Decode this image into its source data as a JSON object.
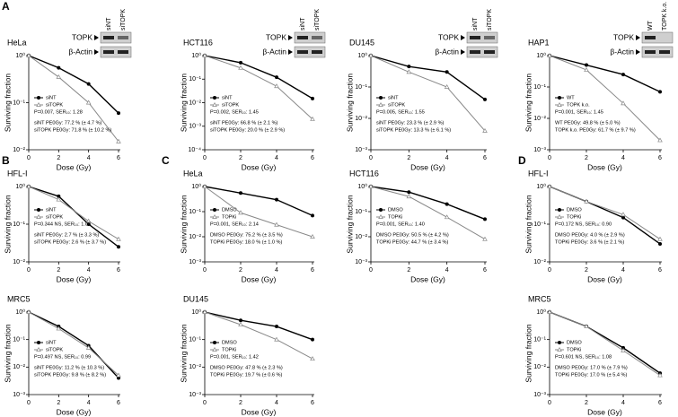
{
  "chart_data": [
    {
      "type": "line",
      "panel": "A",
      "title": "HeLa",
      "ylog": true,
      "xlabel": "Dose (Gy)",
      "ylabel": "Surviving fraction",
      "x": [
        0,
        2,
        4,
        6
      ],
      "xlim": [
        0,
        6
      ],
      "xticks": [
        0,
        2,
        4,
        6
      ],
      "ylim": [
        0.01,
        1
      ],
      "yticks": [
        {
          "value": 1,
          "label": "10⁰"
        },
        {
          "value": 0.1,
          "label": "10⁻¹"
        },
        {
          "value": 0.01,
          "label": "10⁻²"
        }
      ],
      "series": [
        {
          "name": "siNT",
          "color": "#000000",
          "marker": "circle",
          "values": [
            1,
            0.55,
            0.25,
            0.06
          ]
        },
        {
          "name": "siTOPK",
          "color": "#888888",
          "marker": "triangle",
          "values": [
            1,
            0.35,
            0.1,
            0.015
          ]
        }
      ],
      "stats": [
        "P=0.007, SER₁₀: 1.28",
        "siNT PE0Gy: 77.2 % (± 4.7 %)",
        "siTOPK PE0Gy: 71.8 % (± 10.2 %)"
      ],
      "blot": {
        "lanes": [
          "siNT",
          "siTOPK"
        ],
        "rows": [
          "TOPK",
          "β-Actin"
        ]
      }
    },
    {
      "type": "line",
      "title": "HCT116",
      "ylog": true,
      "xlabel": "Dose (Gy)",
      "ylabel": "Surviving fraction",
      "x": [
        0,
        2,
        4,
        6
      ],
      "xlim": [
        0,
        6
      ],
      "xticks": [
        0,
        2,
        4,
        6
      ],
      "ylim": [
        0.0001,
        1
      ],
      "yticks": [
        {
          "value": 1,
          "label": "10⁰"
        },
        {
          "value": 0.1,
          "label": "10⁻¹"
        },
        {
          "value": 0.01,
          "label": "10⁻²"
        },
        {
          "value": 0.001,
          "label": "10⁻³"
        },
        {
          "value": 0.0001,
          "label": "10⁻⁴"
        }
      ],
      "series": [
        {
          "name": "siNT",
          "color": "#000000",
          "marker": "circle",
          "values": [
            1,
            0.5,
            0.12,
            0.015
          ]
        },
        {
          "name": "siTOPK",
          "color": "#888888",
          "marker": "triangle",
          "values": [
            1,
            0.3,
            0.05,
            0.002
          ]
        }
      ],
      "stats": [
        "P=0.002, SER₁₀: 1.45",
        "siNT PE0Gy: 66.8 % (± 2.1 %)",
        "siTOPK PE0Gy: 20.0 % (± 2.9 %)"
      ],
      "blot": {
        "lanes": [
          "siNT",
          "siTOPK"
        ],
        "rows": [
          "TOPK",
          "β-Actin"
        ]
      }
    },
    {
      "type": "line",
      "title": "DU145",
      "ylog": true,
      "xlabel": "Dose (Gy)",
      "ylabel": "Surviving fraction",
      "x": [
        0,
        2,
        4,
        6
      ],
      "xlim": [
        0,
        6
      ],
      "xticks": [
        0,
        2,
        4,
        6
      ],
      "ylim": [
        0.001,
        1
      ],
      "yticks": [
        {
          "value": 1,
          "label": "10⁰"
        },
        {
          "value": 0.1,
          "label": "10⁻¹"
        },
        {
          "value": 0.01,
          "label": "10⁻²"
        },
        {
          "value": 0.001,
          "label": "10⁻³"
        }
      ],
      "series": [
        {
          "name": "siNT",
          "color": "#000000",
          "marker": "circle",
          "values": [
            1,
            0.45,
            0.3,
            0.04
          ]
        },
        {
          "name": "siTOPK",
          "color": "#888888",
          "marker": "triangle",
          "values": [
            1,
            0.3,
            0.1,
            0.004
          ]
        }
      ],
      "stats": [
        "P=0.005, SER₁₀: 1.55",
        "siNT PE0Gy: 23.3 % (± 2.9 %)",
        "siTOPK PE0Gy: 13.3 % (± 6.1 %)"
      ],
      "blot": {
        "lanes": [
          "siNT",
          "siTOPK"
        ],
        "rows": [
          "TOPK",
          "β-Actin"
        ]
      }
    },
    {
      "type": "line",
      "title": "HAP1",
      "ylog": true,
      "xlabel": "Dose (Gy)",
      "ylabel": "Surviving fraction",
      "x": [
        0,
        2,
        4,
        6
      ],
      "xlim": [
        0,
        6
      ],
      "xticks": [
        0,
        2,
        4,
        6
      ],
      "ylim": [
        0.001,
        1
      ],
      "yticks": [
        {
          "value": 1,
          "label": "10⁰"
        },
        {
          "value": 0.1,
          "label": "10⁻¹"
        },
        {
          "value": 0.01,
          "label": "10⁻²"
        },
        {
          "value": 0.001,
          "label": "10⁻³"
        }
      ],
      "series": [
        {
          "name": "WT",
          "color": "#000000",
          "marker": "circle",
          "values": [
            1,
            0.5,
            0.25,
            0.07
          ]
        },
        {
          "name": "TOPK k.o.",
          "color": "#888888",
          "marker": "triangle",
          "values": [
            1,
            0.35,
            0.03,
            0.002
          ]
        }
      ],
      "stats": [
        "P=0.001, SER₁₀: 1.45",
        "WT PE0Gy: 49.8 % (± 5.0 %)",
        "TOPK k.o. PE0Gy: 61.7 % (± 9.7 %)"
      ],
      "blot": {
        "lanes": [
          "WT",
          "TOPK k.o."
        ],
        "rows": [
          "TOPK",
          "β-Actin"
        ]
      }
    },
    {
      "type": "line",
      "panel": "B",
      "title": "HFL-I",
      "ylog": true,
      "xlabel": "Dose (Gy)",
      "ylabel": "Surviving fraction",
      "x": [
        0,
        2,
        4,
        6
      ],
      "xlim": [
        0,
        6
      ],
      "xticks": [
        0,
        2,
        4,
        6
      ],
      "ylim": [
        0.01,
        1
      ],
      "yticks": [
        {
          "value": 1,
          "label": "10⁰"
        },
        {
          "value": 0.1,
          "label": "10⁻¹"
        },
        {
          "value": 0.01,
          "label": "10⁻²"
        }
      ],
      "series": [
        {
          "name": "siNT",
          "color": "#000000",
          "marker": "circle",
          "values": [
            1,
            0.55,
            0.1,
            0.025
          ]
        },
        {
          "name": "siTOPK",
          "color": "#888888",
          "marker": "triangle",
          "values": [
            1,
            0.45,
            0.12,
            0.04
          ]
        }
      ],
      "stats": [
        "P=0.344 NS, SER₁₀: 1.05",
        "siNT PE0Gy: 2.7 % (± 3.3 %)",
        "siTOPK PE0Gy: 2.6 % (± 3.7 %)"
      ]
    },
    {
      "type": "line",
      "title": "MRC5",
      "ylog": true,
      "xlabel": "Dose (Gy)",
      "ylabel": "Surviving fraction",
      "x": [
        0,
        2,
        4,
        6
      ],
      "xlim": [
        0,
        6
      ],
      "xticks": [
        0,
        2,
        4,
        6
      ],
      "ylim": [
        0.001,
        1
      ],
      "yticks": [
        {
          "value": 1,
          "label": "10⁰"
        },
        {
          "value": 0.1,
          "label": "10⁻¹"
        },
        {
          "value": 0.01,
          "label": "10⁻²"
        },
        {
          "value": 0.001,
          "label": "10⁻³"
        }
      ],
      "series": [
        {
          "name": "siNT",
          "color": "#000000",
          "marker": "circle",
          "values": [
            1,
            0.3,
            0.06,
            0.004
          ]
        },
        {
          "name": "siTOPK",
          "color": "#888888",
          "marker": "triangle",
          "values": [
            1,
            0.25,
            0.05,
            0.005
          ]
        }
      ],
      "stats": [
        "P=0.497 NS, SER₁₀: 0.99",
        "siNT PE0Gy: 11.2 % (± 10.3 %)",
        "siTOPK PE0Gy: 9.8 % (± 8.2 %)"
      ]
    },
    {
      "type": "line",
      "panel": "C",
      "title": "HeLa",
      "ylog": true,
      "xlabel": "Dose (Gy)",
      "ylabel": "Surviving fraction",
      "x": [
        0,
        2,
        4,
        6
      ],
      "xlim": [
        0,
        6
      ],
      "xticks": [
        0,
        2,
        4,
        6
      ],
      "ylim": [
        0.001,
        1
      ],
      "yticks": [
        {
          "value": 1,
          "label": "10⁰"
        },
        {
          "value": 0.1,
          "label": "10⁻¹"
        },
        {
          "value": 0.01,
          "label": "10⁻²"
        },
        {
          "value": 0.001,
          "label": "10⁻³"
        }
      ],
      "series": [
        {
          "name": "DMSO",
          "color": "#000000",
          "marker": "circle",
          "values": [
            1,
            0.55,
            0.3,
            0.07
          ]
        },
        {
          "name": "TOPKi",
          "color": "#888888",
          "marker": "triangle",
          "values": [
            1,
            0.09,
            0.03,
            0.01
          ]
        }
      ],
      "stats": [
        "P=0.001, SER₁₀: 2.14",
        "DMSO PE0Gy: 75.2 % (± 3.5 %)",
        "TOPKi PE0Gy: 18.0 % (± 1.0 %)"
      ]
    },
    {
      "type": "line",
      "title": "HCT116",
      "ylog": true,
      "xlabel": "Dose (Gy)",
      "ylabel": "Surviving fraction",
      "x": [
        0,
        2,
        4,
        6
      ],
      "xlim": [
        0,
        6
      ],
      "xticks": [
        0,
        2,
        4,
        6
      ],
      "ylim": [
        0.001,
        1
      ],
      "yticks": [
        {
          "value": 1,
          "label": "10⁰"
        },
        {
          "value": 0.1,
          "label": "10⁻¹"
        },
        {
          "value": 0.01,
          "label": "10⁻²"
        },
        {
          "value": 0.001,
          "label": "10⁻³"
        }
      ],
      "series": [
        {
          "name": "DMSO",
          "color": "#000000",
          "marker": "circle",
          "values": [
            1,
            0.6,
            0.2,
            0.05
          ]
        },
        {
          "name": "TOPKi",
          "color": "#888888",
          "marker": "triangle",
          "values": [
            1,
            0.4,
            0.06,
            0.008
          ]
        }
      ],
      "stats": [
        "P=0.001, SER₁₀: 1.40",
        "DMSO PE0Gy: 50.5 % (± 4.2 %)",
        "TOPKi PE0Gy: 44.7 % (± 3.4 %)"
      ]
    },
    {
      "type": "line",
      "title": "DU145",
      "ylog": true,
      "xlabel": "Dose (Gy)",
      "ylabel": "Surviving fraction",
      "x": [
        0,
        2,
        4,
        6
      ],
      "xlim": [
        0,
        6
      ],
      "xticks": [
        0,
        2,
        4,
        6
      ],
      "ylim": [
        0.001,
        1
      ],
      "yticks": [
        {
          "value": 1,
          "label": "10⁰"
        },
        {
          "value": 0.1,
          "label": "10⁻¹"
        },
        {
          "value": 0.01,
          "label": "10⁻²"
        },
        {
          "value": 0.001,
          "label": "10⁻³"
        }
      ],
      "series": [
        {
          "name": "DMSO",
          "color": "#000000",
          "marker": "circle",
          "values": [
            1,
            0.5,
            0.3,
            0.1
          ]
        },
        {
          "name": "TOPKi",
          "color": "#888888",
          "marker": "triangle",
          "values": [
            1,
            0.35,
            0.1,
            0.02
          ]
        }
      ],
      "stats": [
        "P=0.001, SER₁₀: 1.42",
        "DMSO PE0Gy: 47.8 % (± 2.3 %)",
        "TOPKi PE0Gy: 19.7 % (± 0.6 %)"
      ]
    },
    {
      "type": "line",
      "panel": "D",
      "title": "HFL-I",
      "ylog": true,
      "xlabel": "Dose (Gy)",
      "ylabel": "Surviving fraction",
      "x": [
        0,
        2,
        4,
        6
      ],
      "xlim": [
        0,
        6
      ],
      "xticks": [
        0,
        2,
        4,
        6
      ],
      "ylim": [
        0.01,
        1
      ],
      "yticks": [
        {
          "value": 1,
          "label": "10⁰"
        },
        {
          "value": 0.1,
          "label": "10⁻¹"
        },
        {
          "value": 0.01,
          "label": "10⁻²"
        }
      ],
      "series": [
        {
          "name": "DMSO",
          "color": "#000000",
          "marker": "circle",
          "values": [
            1,
            0.4,
            0.15,
            0.03
          ]
        },
        {
          "name": "TOPKi",
          "color": "#888888",
          "marker": "triangle",
          "values": [
            1,
            0.4,
            0.18,
            0.04
          ]
        }
      ],
      "stats": [
        "P=0.172 NS, SER₁₀: 0.90",
        "DMSO PE0Gy: 4.0 % (± 2.9 %)",
        "TOPKi PE0Gy: 3.6 % (± 2.1 %)"
      ]
    },
    {
      "type": "line",
      "title": "MRC5",
      "ylog": true,
      "xlabel": "Dose (Gy)",
      "ylabel": "Surviving fraction",
      "x": [
        0,
        2,
        4,
        6
      ],
      "xlim": [
        0,
        6
      ],
      "xticks": [
        0,
        2,
        4,
        6
      ],
      "ylim": [
        0.001,
        1
      ],
      "yticks": [
        {
          "value": 1,
          "label": "10⁰"
        },
        {
          "value": 0.1,
          "label": "10⁻¹"
        },
        {
          "value": 0.01,
          "label": "10⁻²"
        },
        {
          "value": 0.001,
          "label": "10⁻³"
        }
      ],
      "series": [
        {
          "name": "DMSO",
          "color": "#000000",
          "marker": "circle",
          "values": [
            1,
            0.3,
            0.05,
            0.006
          ]
        },
        {
          "name": "TOPKi",
          "color": "#888888",
          "marker": "triangle",
          "values": [
            1,
            0.3,
            0.04,
            0.005
          ]
        }
      ],
      "stats": [
        "P=0.601 NS, SER₁₀: 1.08",
        "DMSO PE0Gy: 17.0 % (± 7.9 %)",
        "TOPKi PE0Gy: 17.0 % (± 5.4 %)"
      ]
    }
  ]
}
